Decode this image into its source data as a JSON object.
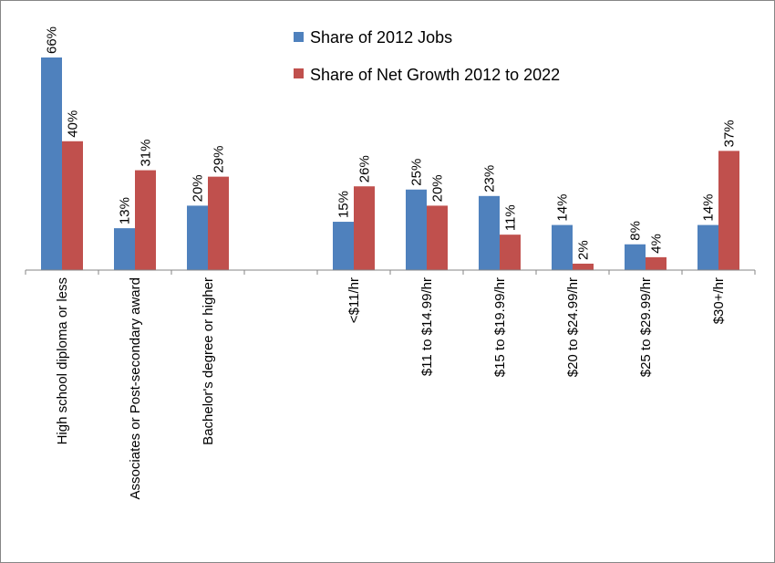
{
  "chart_data": {
    "type": "bar",
    "title": "",
    "xlabel": "",
    "ylabel": "",
    "ylim": [
      0,
      70
    ],
    "grid": false,
    "legend_position": "top-center",
    "categories": [
      "High school diploma or less",
      "Associates or Post-secondary award",
      "Bachelor's degree or higher",
      "",
      "<$11/hr",
      "$11 to $14.99/hr",
      "$15 to $19.99/hr",
      "$20 to $24.99/hr",
      "$25 to $29.99/hr",
      "$30+/hr"
    ],
    "series": [
      {
        "name": "Share of 2012 Jobs",
        "color": "#4F81BD",
        "values": [
          66,
          13,
          20,
          null,
          15,
          25,
          23,
          14,
          8,
          14
        ],
        "labels": [
          "66%",
          "13%",
          "20%",
          "",
          "15%",
          "25%",
          "23%",
          "14%",
          "8%",
          "14%"
        ]
      },
      {
        "name": "Share of Net Growth 2012 to 2022",
        "color": "#C0504D",
        "values": [
          40,
          31,
          29,
          null,
          26,
          20,
          11,
          2,
          4,
          37
        ],
        "labels": [
          "40%",
          "31%",
          "29%",
          "",
          "26%",
          "20%",
          "11%",
          "2%",
          "4%",
          "37%"
        ]
      }
    ]
  }
}
